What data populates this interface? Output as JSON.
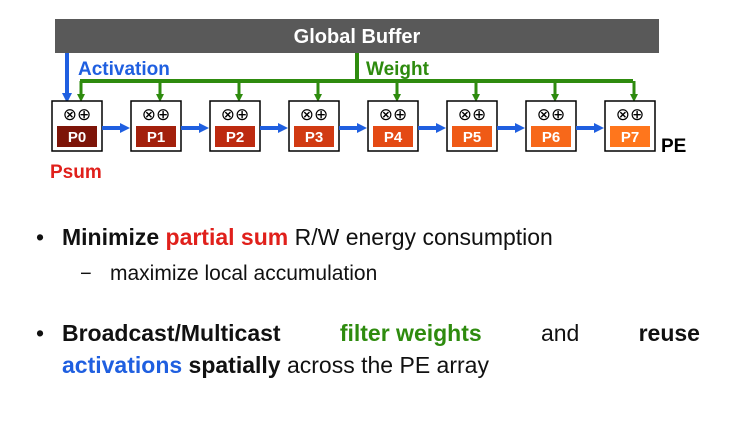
{
  "diagram": {
    "global_buffer": "Global Buffer",
    "activation": "Activation",
    "weight": "Weight",
    "psum": "Psum",
    "pe": "PE",
    "pe_ops": "⊗⊕",
    "pes": [
      {
        "id": "P0",
        "color": "#7d1408"
      },
      {
        "id": "P1",
        "color": "#a3200c"
      },
      {
        "id": "P2",
        "color": "#bd2a10"
      },
      {
        "id": "P3",
        "color": "#d13a12"
      },
      {
        "id": "P4",
        "color": "#e44a14"
      },
      {
        "id": "P5",
        "color": "#ef5a16"
      },
      {
        "id": "P6",
        "color": "#f7681a"
      },
      {
        "id": "P7",
        "color": "#ff761c"
      }
    ],
    "colors": {
      "buffer": "#595959",
      "activation": "#1f5fe0",
      "weight": "#2e8b0e",
      "psum": "#e0201b"
    }
  },
  "bullets": {
    "b1_part1": "Minimize",
    "b1_part2": "partial sum",
    "b1_part3": "R/W energy consumption",
    "sub1": "maximize local accumulation",
    "b2_part1": "Broadcast/Multicast",
    "b2_part2": "filter weights",
    "b2_part3": "and",
    "b2_part4": "reuse",
    "b2_part5": "activations",
    "b2_part6": "spatially",
    "b2_part7": "across the PE array",
    "bullet_char": "•",
    "dash_char": "−"
  }
}
